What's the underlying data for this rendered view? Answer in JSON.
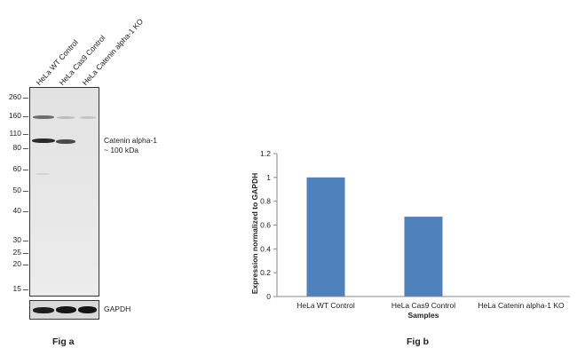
{
  "western_blot": {
    "lanes": [
      "HeLa WT Control",
      "HeLa Cas9 Control",
      "HeLa Catenin alpha-1 KO"
    ],
    "mw_markers": [
      "260",
      "160",
      "110",
      "80",
      "60",
      "50",
      "40",
      "30",
      "25",
      "20",
      "15"
    ],
    "target_label_line1": "Catenin alpha-1",
    "target_label_line2": "~ 100 kDa",
    "loading_control_label": "GAPDH",
    "figure_label": "Fig a"
  },
  "chart_data": {
    "type": "bar",
    "categories": [
      "HeLa WT Control",
      "HeLa Cas9 Control",
      "HeLa Catenin alpha-1 KO"
    ],
    "values": [
      1.0,
      0.67,
      0.0
    ],
    "xlabel": "Samples",
    "ylabel": "Expression  normalized to GAPDH",
    "ylim": [
      0,
      1.2
    ],
    "yticks": [
      "0",
      "0.2",
      "0.4",
      "0.6",
      "0.8",
      "1",
      "1.2"
    ],
    "bar_color": "#4f81bd",
    "grid": false,
    "legend": "none",
    "figure_label": "Fig b"
  }
}
